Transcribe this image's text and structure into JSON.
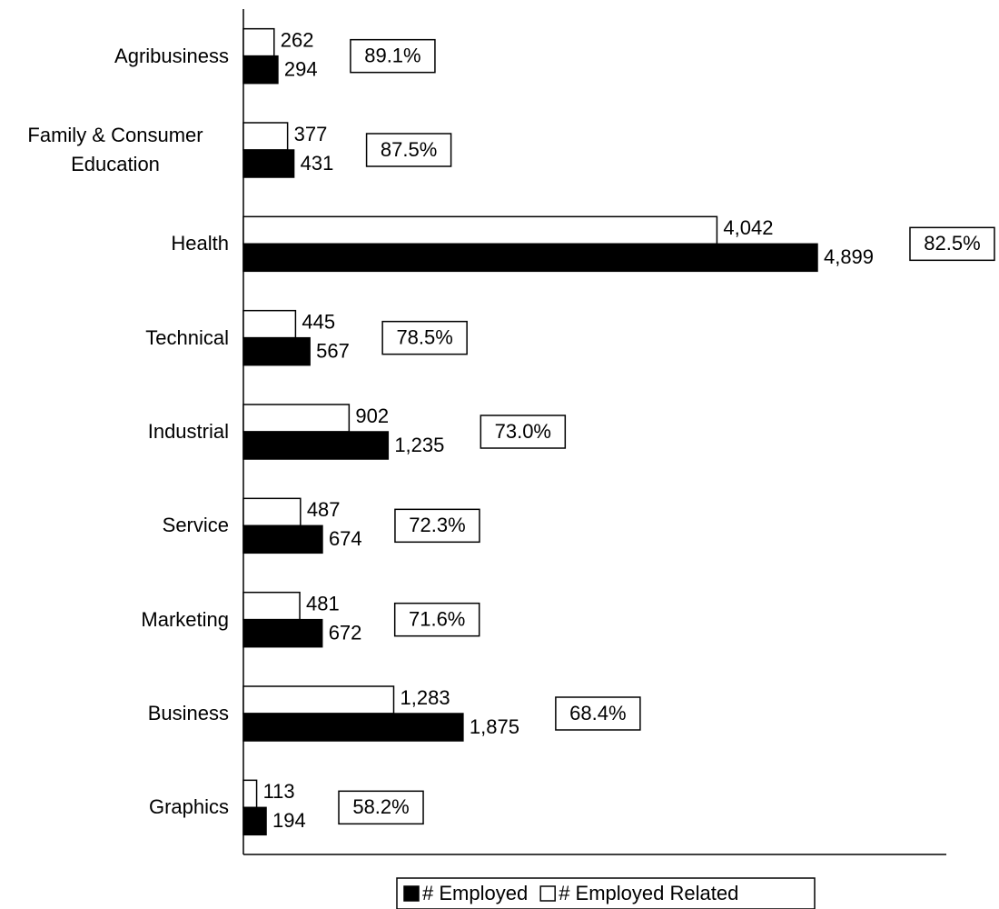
{
  "chart_data": {
    "type": "bar",
    "orientation": "horizontal",
    "categories": [
      "Agribusiness",
      "Family & Consumer Education",
      "Health",
      "Technical",
      "Industrial",
      "Service",
      "Marketing",
      "Business",
      "Graphics"
    ],
    "series": [
      {
        "name": "# Employed Related",
        "color": "#ffffff",
        "values": [
          262,
          377,
          4042,
          445,
          902,
          487,
          481,
          1283,
          113
        ],
        "value_labels": [
          "262",
          "377",
          "4,042",
          "445",
          "902",
          "487",
          "481",
          "1,283",
          "113"
        ]
      },
      {
        "name": "# Employed",
        "color": "#000000",
        "values": [
          294,
          431,
          4899,
          567,
          1235,
          674,
          672,
          1875,
          194
        ],
        "value_labels": [
          "294",
          "431",
          "4,899",
          "567",
          "1,235",
          "674",
          "672",
          "1,875",
          "194"
        ]
      }
    ],
    "related_share": {
      "values": [
        89.1,
        87.5,
        82.5,
        78.5,
        73.0,
        72.3,
        71.6,
        68.4,
        58.2
      ],
      "value_labels": [
        "89.1%",
        "87.5%",
        "82.5%",
        "78.5%",
        "73.0%",
        "72.3%",
        "71.6%",
        "68.4%",
        "58.2%"
      ]
    },
    "xlim": [
      0,
      6000
    ],
    "legend": [
      "# Employed",
      "# Employed Related"
    ],
    "legend_position": "bottom"
  }
}
